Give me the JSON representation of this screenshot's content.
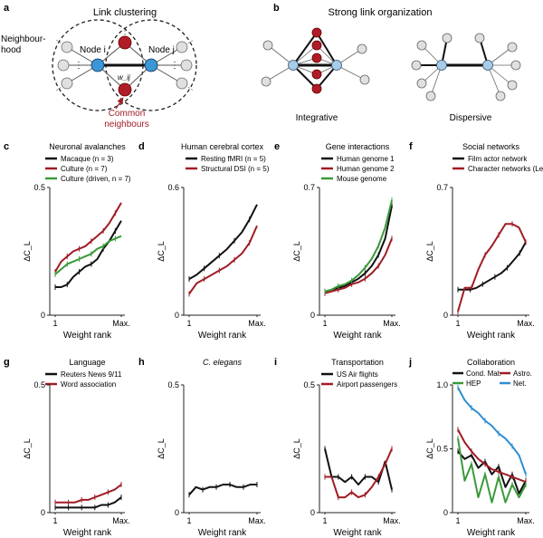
{
  "colors": {
    "black": "#111111",
    "red": "#a01c24",
    "green": "#3a9a3a",
    "blue": "#2e8fd0",
    "node_grey": "#e0e0e0",
    "node_blue": "#3a96d6",
    "node_lightblue": "#a8cbe8",
    "node_red": "#b01c28"
  },
  "panel_a": {
    "letter": "a",
    "title": "Link clustering",
    "neighbourhood": [
      "Neighbour-",
      "hood"
    ],
    "node_i": "Node i",
    "node_j": "Node j",
    "weight": "w_ij",
    "common": [
      "Common",
      "neighbours"
    ]
  },
  "panel_b": {
    "letter": "b",
    "title": "Strong link organization",
    "integrative": "Integrative",
    "dispersive": "Dispersive"
  },
  "chart_data": [
    {
      "id": "c",
      "type": "line",
      "title": "Neuronal avalanches",
      "xlabel": "Weight rank",
      "ylabel": "ΔC_L",
      "xticks": [
        "1",
        "Max."
      ],
      "ylim": [
        0,
        0.5
      ],
      "yticks": [
        "0",
        "0.5"
      ],
      "series": [
        {
          "name": "Macaque (n = 3)",
          "color": "black",
          "values": [
            0.11,
            0.11,
            0.12,
            0.15,
            0.17,
            0.19,
            0.2,
            0.22,
            0.26,
            0.29,
            0.33,
            0.37
          ]
        },
        {
          "name": "Culture (n = 7)",
          "color": "red",
          "values": [
            0.17,
            0.21,
            0.23,
            0.25,
            0.26,
            0.27,
            0.29,
            0.31,
            0.33,
            0.36,
            0.4,
            0.44
          ]
        },
        {
          "name": "Culture (driven, n = 7)",
          "color": "green",
          "values": [
            0.16,
            0.18,
            0.2,
            0.21,
            0.22,
            0.23,
            0.24,
            0.26,
            0.27,
            0.29,
            0.3,
            0.31
          ]
        }
      ]
    },
    {
      "id": "d",
      "type": "line",
      "title": "Human cerebral cortex",
      "xlabel": "Weight rank",
      "ylabel": "ΔC_L",
      "xticks": [
        "1",
        "Max."
      ],
      "ylim": [
        0,
        0.6
      ],
      "yticks": [
        "0",
        "0.6"
      ],
      "series": [
        {
          "name": "Resting fMRI (n = 5)",
          "color": "black",
          "values": [
            0.17,
            0.19,
            0.22,
            0.25,
            0.28,
            0.31,
            0.35,
            0.39,
            0.45,
            0.52
          ]
        },
        {
          "name": "Structural DSI (n = 5)",
          "color": "red",
          "values": [
            0.1,
            0.15,
            0.17,
            0.19,
            0.21,
            0.23,
            0.26,
            0.29,
            0.34,
            0.42
          ]
        }
      ]
    },
    {
      "id": "e",
      "type": "line",
      "title": "Gene interactions",
      "xlabel": "Weight rank",
      "ylabel": "ΔC_L",
      "xticks": [
        "1",
        "Max."
      ],
      "ylim": [
        0,
        0.7
      ],
      "yticks": [
        "0",
        "0.7"
      ],
      "series": [
        {
          "name": "Human genome 1",
          "color": "black",
          "values": [
            0.13,
            0.14,
            0.15,
            0.16,
            0.18,
            0.2,
            0.23,
            0.27,
            0.33,
            0.42,
            0.6
          ]
        },
        {
          "name": "Human genome 2",
          "color": "red",
          "values": [
            0.12,
            0.13,
            0.14,
            0.15,
            0.17,
            0.18,
            0.2,
            0.23,
            0.27,
            0.33,
            0.42
          ]
        },
        {
          "name": "Mouse genome",
          "color": "green",
          "values": [
            0.13,
            0.14,
            0.16,
            0.17,
            0.19,
            0.22,
            0.26,
            0.31,
            0.38,
            0.48,
            0.63
          ]
        }
      ]
    },
    {
      "id": "f",
      "type": "line",
      "title": "Social networks",
      "xlabel": "Weight rank",
      "ylabel": "ΔC_L",
      "xticks": [
        "1",
        "Max."
      ],
      "ylim": [
        0,
        0.7
      ],
      "yticks": [
        "0",
        "0.7"
      ],
      "series": [
        {
          "name": "Film actor network",
          "color": "black",
          "values": [
            0.14,
            0.14,
            0.14,
            0.15,
            0.17,
            0.19,
            0.21,
            0.23,
            0.26,
            0.3,
            0.34,
            0.4
          ]
        },
        {
          "name": "Character networks (Les Misérables)",
          "color": "red",
          "values": [
            0.02,
            0.15,
            0.15,
            0.25,
            0.33,
            0.38,
            0.44,
            0.5,
            0.5,
            0.48,
            0.4
          ]
        }
      ]
    },
    {
      "id": "g",
      "type": "line",
      "title": "Language",
      "xlabel": "Weight rank",
      "ylabel": "ΔC_L",
      "xticks": [
        "1",
        "Max."
      ],
      "ylim": [
        0,
        0.5
      ],
      "yticks": [
        "0",
        "0.5"
      ],
      "series": [
        {
          "name": "Reuters News 9/11",
          "color": "black",
          "values": [
            0.02,
            0.02,
            0.02,
            0.02,
            0.02,
            0.02,
            0.02,
            0.03,
            0.03,
            0.04,
            0.06
          ]
        },
        {
          "name": "Word association",
          "color": "red",
          "values": [
            0.04,
            0.04,
            0.04,
            0.04,
            0.05,
            0.05,
            0.06,
            0.07,
            0.08,
            0.09,
            0.11
          ]
        }
      ]
    },
    {
      "id": "h",
      "type": "line",
      "title": "C. elegans",
      "xlabel": "Weight rank",
      "ylabel": "ΔC_L",
      "xticks": [
        "1",
        "Max."
      ],
      "ylim": [
        0,
        0.5
      ],
      "yticks": [
        "0",
        "0.5"
      ],
      "series": [
        {
          "name": "C. elegans",
          "color": "black",
          "values": [
            0.07,
            0.1,
            0.09,
            0.1,
            0.1,
            0.11,
            0.11,
            0.1,
            0.1,
            0.11,
            0.11
          ]
        }
      ]
    },
    {
      "id": "i",
      "type": "line",
      "title": "Transportation",
      "xlabel": "Weight rank",
      "ylabel": "ΔC_L",
      "xticks": [
        "1",
        "Max."
      ],
      "ylim": [
        0,
        0.5
      ],
      "yticks": [
        "0",
        "0.5"
      ],
      "series": [
        {
          "name": "US Air flights",
          "color": "black",
          "values": [
            0.25,
            0.14,
            0.14,
            0.12,
            0.14,
            0.11,
            0.14,
            0.14,
            0.12,
            0.2,
            0.09
          ]
        },
        {
          "name": "Airport passengers",
          "color": "red",
          "values": [
            0.14,
            0.14,
            0.06,
            0.06,
            0.08,
            0.06,
            0.07,
            0.1,
            0.14,
            0.19,
            0.25
          ]
        }
      ]
    },
    {
      "id": "j",
      "type": "line",
      "title": "Collaboration",
      "xlabel": "Weight rank",
      "ylabel": "ΔC_L",
      "xticks": [
        "1",
        "Max."
      ],
      "ylim": [
        0,
        1.0
      ],
      "yticks": [
        "0",
        "0.5",
        "1.0"
      ],
      "series": [
        {
          "name": "Cond. Mat.",
          "color": "black",
          "values": [
            0.48,
            0.42,
            0.45,
            0.35,
            0.4,
            0.3,
            0.36,
            0.2,
            0.3,
            0.15,
            0.25
          ]
        },
        {
          "name": "Astro.",
          "color": "red",
          "values": [
            0.65,
            0.55,
            0.48,
            0.42,
            0.38,
            0.34,
            0.32,
            0.3,
            0.28,
            0.26,
            0.24
          ]
        },
        {
          "name": "HEP",
          "color": "green",
          "values": [
            0.58,
            0.25,
            0.38,
            0.12,
            0.3,
            0.08,
            0.28,
            0.08,
            0.22,
            0.12,
            0.22
          ]
        },
        {
          "name": "Net.",
          "color": "blue",
          "values": [
            0.98,
            0.88,
            0.82,
            0.78,
            0.72,
            0.68,
            0.62,
            0.58,
            0.52,
            0.45,
            0.3
          ]
        }
      ]
    }
  ]
}
